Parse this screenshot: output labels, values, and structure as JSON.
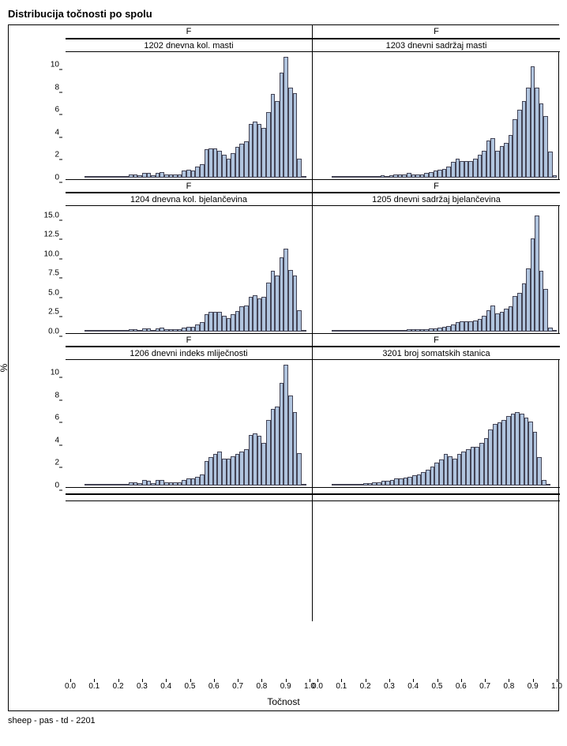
{
  "title": "Distribucija točnosti po spolu",
  "ylabel": "%",
  "xlabel": "Točnost",
  "footer": "sheep - pas - td - 2201",
  "colors": {
    "bar_fill": "#b0c4de",
    "bar_stroke": "#445566",
    "border": "#000000",
    "background": "#ffffff"
  },
  "fontsize": {
    "title": 13,
    "axis_label": 12,
    "tick": 10,
    "header": 11,
    "footer": 11
  },
  "xaxis": {
    "xlim": [
      0.0,
      1.0
    ],
    "ticks": [
      0.0,
      0.1,
      0.2,
      0.3,
      0.4,
      0.5,
      0.6,
      0.7,
      0.8,
      0.9,
      1.0
    ],
    "tick_labels": [
      "0.0",
      "0.1",
      "0.2",
      "0.3",
      "0.4",
      "0.5",
      "0.6",
      "0.7",
      "0.8",
      "0.9",
      "1.0"
    ]
  },
  "panels": [
    {
      "row": 0,
      "col": 0,
      "header1": "F",
      "header2": "1202 dnevna kol. masti",
      "ylim": [
        0,
        11
      ],
      "yticks": [
        0,
        2,
        4,
        6,
        8,
        10
      ],
      "ytick_labels": [
        "0",
        "2",
        "4",
        "6",
        "8",
        "10"
      ],
      "values": [
        0,
        0,
        0,
        0,
        0,
        0.05,
        0.05,
        0.1,
        0.05,
        0.1,
        0.1,
        0.1,
        0.15,
        0.15,
        0.1,
        0.3,
        0.3,
        0.2,
        0.45,
        0.4,
        0.2,
        0.45,
        0.5,
        0.3,
        0.3,
        0.3,
        0.3,
        0.6,
        0.7,
        0.6,
        1.0,
        1.2,
        2.5,
        2.6,
        2.6,
        2.4,
        2.0,
        1.7,
        2.2,
        2.7,
        3.0,
        3.2,
        4.8,
        5.0,
        4.8,
        4.4,
        5.8,
        7.4,
        6.8,
        9.3,
        10.7,
        8.0,
        7.5,
        1.7,
        0.1,
        0
      ]
    },
    {
      "row": 0,
      "col": 1,
      "header1": "F",
      "header2": "1203 dnevni sadržaj masti",
      "ylim": [
        0,
        11
      ],
      "yticks": [
        0,
        2,
        4,
        6,
        8,
        10
      ],
      "ytick_labels": [
        "0",
        "2",
        "4",
        "6",
        "8",
        "10"
      ],
      "values": [
        0,
        0,
        0,
        0,
        0,
        0.05,
        0.05,
        0.05,
        0.1,
        0.05,
        0.1,
        0.1,
        0.1,
        0.15,
        0.1,
        0.1,
        0.2,
        0.15,
        0.2,
        0.3,
        0.3,
        0.3,
        0.4,
        0.3,
        0.3,
        0.3,
        0.4,
        0.5,
        0.6,
        0.7,
        0.8,
        1.0,
        1.4,
        1.7,
        1.5,
        1.5,
        1.5,
        1.7,
        2.0,
        2.4,
        3.3,
        3.5,
        2.4,
        2.8,
        3.1,
        3.8,
        5.2,
        6.0,
        6.8,
        8.0,
        9.9,
        8.0,
        6.6,
        5.5,
        2.3,
        0.2
      ]
    },
    {
      "row": 1,
      "col": 0,
      "header1": "F",
      "header2": "1204 dnevna kol. bjelančevina",
      "ylim": [
        0,
        16
      ],
      "yticks": [
        0,
        2.5,
        5.0,
        7.5,
        10.0,
        12.5,
        15.0
      ],
      "ytick_labels": [
        "0.0",
        "2.5",
        "5.0",
        "7.5",
        "10.0",
        "12.5",
        "15.0"
      ],
      "values": [
        0,
        0,
        0,
        0,
        0,
        0.05,
        0.05,
        0.1,
        0.05,
        0.1,
        0.1,
        0.1,
        0.1,
        0.15,
        0.1,
        0.3,
        0.3,
        0.2,
        0.45,
        0.4,
        0.2,
        0.45,
        0.5,
        0.3,
        0.3,
        0.3,
        0.3,
        0.5,
        0.6,
        0.6,
        0.9,
        1.2,
        2.2,
        2.5,
        2.6,
        2.5,
        2.0,
        1.7,
        2.2,
        2.7,
        3.3,
        3.4,
        4.5,
        4.7,
        4.3,
        4.5,
        6.3,
        7.8,
        7.2,
        9.6,
        10.7,
        8.0,
        7.2,
        2.8,
        0.2,
        0
      ]
    },
    {
      "row": 1,
      "col": 1,
      "header1": "F",
      "header2": "1205 dnevni sadržaj bjelančevina",
      "ylim": [
        0,
        16
      ],
      "yticks": [
        0,
        2.5,
        5.0,
        7.5,
        10.0,
        12.5,
        15.0
      ],
      "ytick_labels": [
        "0.0",
        "2.5",
        "5.0",
        "7.5",
        "10.0",
        "12.5",
        "15.0"
      ],
      "values": [
        0,
        0,
        0,
        0,
        0,
        0.05,
        0.05,
        0.05,
        0.05,
        0.1,
        0.05,
        0.1,
        0.1,
        0.1,
        0.1,
        0.1,
        0.1,
        0.15,
        0.15,
        0.2,
        0.2,
        0.2,
        0.3,
        0.3,
        0.3,
        0.3,
        0.3,
        0.4,
        0.4,
        0.5,
        0.6,
        0.7,
        0.9,
        1.2,
        1.3,
        1.3,
        1.3,
        1.4,
        1.6,
        2.0,
        2.8,
        3.4,
        2.3,
        2.5,
        3.0,
        3.3,
        4.6,
        5.0,
        6.2,
        8.2,
        12.0,
        15.0,
        7.8,
        5.5,
        0.5,
        0.1
      ]
    },
    {
      "row": 2,
      "col": 0,
      "header1": "F",
      "header2": "1206 dnevni indeks mliječnosti",
      "ylim": [
        0,
        11
      ],
      "yticks": [
        0,
        2,
        4,
        6,
        8,
        10
      ],
      "ytick_labels": [
        "0",
        "2",
        "4",
        "6",
        "8",
        "10"
      ],
      "values": [
        0,
        0,
        0,
        0,
        0,
        0.05,
        0.05,
        0.1,
        0.05,
        0.1,
        0.1,
        0.1,
        0.15,
        0.1,
        0.1,
        0.3,
        0.3,
        0.2,
        0.5,
        0.4,
        0.2,
        0.5,
        0.5,
        0.3,
        0.3,
        0.3,
        0.3,
        0.5,
        0.6,
        0.6,
        0.8,
        1.0,
        2.2,
        2.5,
        2.8,
        3.0,
        2.4,
        2.4,
        2.6,
        2.8,
        3.0,
        3.2,
        4.5,
        4.6,
        4.4,
        3.8,
        5.8,
        6.8,
        7.0,
        9.1,
        10.7,
        8.0,
        6.5,
        2.9,
        0.1,
        0
      ]
    },
    {
      "row": 2,
      "col": 1,
      "header1": "F",
      "header2": "3201 broj somatskih stanica",
      "ylim": [
        0,
        11
      ],
      "yticks": [
        0,
        2,
        4,
        6,
        8,
        10
      ],
      "ytick_labels": [
        "0",
        "2",
        "4",
        "6",
        "8",
        "10"
      ],
      "values": [
        0,
        0,
        0,
        0,
        0,
        0.05,
        0.05,
        0.1,
        0.1,
        0.1,
        0.15,
        0.15,
        0.2,
        0.2,
        0.3,
        0.3,
        0.4,
        0.4,
        0.5,
        0.6,
        0.6,
        0.7,
        0.8,
        0.9,
        1.0,
        1.2,
        1.4,
        1.7,
        2.0,
        2.3,
        2.8,
        2.6,
        2.4,
        2.8,
        3.0,
        3.2,
        3.4,
        3.4,
        3.8,
        4.2,
        5.0,
        5.5,
        5.6,
        5.8,
        6.2,
        6.4,
        6.5,
        6.4,
        6.0,
        5.7,
        4.8,
        2.5,
        0.5,
        0.1,
        0,
        0
      ]
    }
  ],
  "empty_row": {
    "row": 3,
    "cells": [
      {
        "header1": "",
        "header2": ""
      },
      {
        "header1": "",
        "header2": ""
      }
    ]
  }
}
